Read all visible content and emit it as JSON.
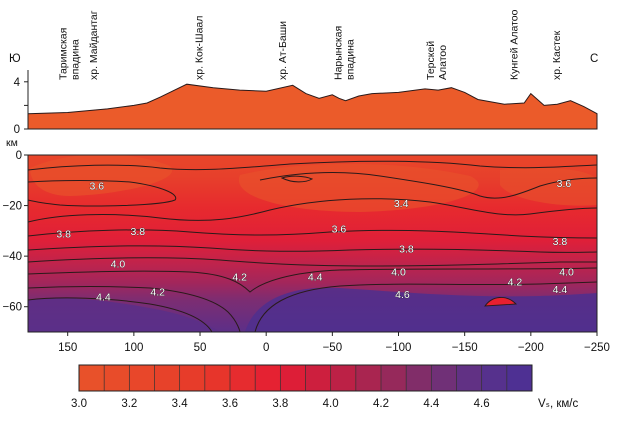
{
  "chart_data": {
    "type": "heatmap",
    "x_axis": {
      "reversed": true,
      "range": [
        180,
        -250
      ],
      "ticks": [
        150,
        100,
        50,
        0,
        -50,
        -100,
        -150,
        -200,
        -250
      ]
    },
    "topography": {
      "direction_labels": {
        "left": "Ю",
        "right": "С"
      },
      "y_ticks": [
        0,
        2,
        4
      ],
      "y_tick_labels": [
        "0",
        "",
        "4"
      ],
      "y_range": [
        0,
        5
      ],
      "unit_label": "км",
      "profile_x": [
        180,
        150,
        120,
        100,
        90,
        80,
        60,
        40,
        20,
        0,
        -20,
        -30,
        -40,
        -50,
        -55,
        -60,
        -70,
        -80,
        -100,
        -120,
        -130,
        -140,
        -150,
        -160,
        -180,
        -195,
        -200,
        -210,
        -220,
        -230,
        -240,
        -250
      ],
      "profile_height": [
        1.3,
        1.4,
        1.7,
        2.0,
        2.2,
        2.7,
        3.8,
        3.5,
        3.3,
        3.2,
        3.7,
        3.0,
        2.6,
        2.9,
        2.6,
        2.4,
        2.8,
        3.0,
        3.1,
        3.4,
        3.3,
        3.5,
        3.1,
        2.5,
        2.1,
        2.2,
        3.0,
        2.0,
        2.1,
        2.4,
        1.9,
        1.3
      ],
      "sites": [
        {
          "x": 148,
          "name": "Таримская впадина"
        },
        {
          "x": 125,
          "name": "хр. Майдантаг"
        },
        {
          "x": 45,
          "name": "хр. Кок-Шаал"
        },
        {
          "x": -18,
          "name": "хр. Ат-Баши"
        },
        {
          "x": -60,
          "name": "Нарынская впадина"
        },
        {
          "x": -130,
          "name": "Терскей Алатоо"
        },
        {
          "x": -193,
          "name": "Кунгей Алатоо"
        },
        {
          "x": -225,
          "name": "хр. Кастек"
        }
      ]
    },
    "section": {
      "y_ticks": [
        0,
        -20,
        -40,
        -60
      ],
      "y_range": [
        -70,
        0
      ],
      "contour_labels": [
        {
          "x": 128,
          "y": -12,
          "value": "3.6"
        },
        {
          "x": 153,
          "y": -31,
          "value": "3.8"
        },
        {
          "x": 97,
          "y": -30,
          "value": "3.8"
        },
        {
          "x": 112,
          "y": -43,
          "value": "4.0"
        },
        {
          "x": 123,
          "y": -56,
          "value": "4.4"
        },
        {
          "x": 82,
          "y": -54,
          "value": "4.2"
        },
        {
          "x": 20,
          "y": -48,
          "value": "4.2"
        },
        {
          "x": -37,
          "y": -48,
          "value": "4.4"
        },
        {
          "x": -55,
          "y": -29,
          "value": "3.6"
        },
        {
          "x": -100,
          "y": -46,
          "value": "4.0"
        },
        {
          "x": -102,
          "y": -19,
          "value": "3.4"
        },
        {
          "x": -106,
          "y": -37,
          "value": "3.8"
        },
        {
          "x": -103,
          "y": -55,
          "value": "4.6"
        },
        {
          "x": -188,
          "y": -50,
          "value": "4.2"
        },
        {
          "x": -225,
          "y": -11,
          "value": "3.6"
        },
        {
          "x": -222,
          "y": -34,
          "value": "3.8"
        },
        {
          "x": -227,
          "y": -46,
          "value": "4.0"
        },
        {
          "x": -222,
          "y": -53,
          "value": "4.4"
        }
      ]
    },
    "colorbar": {
      "ticks": [
        "3.0",
        "3.2",
        "3.4",
        "3.6",
        "3.8",
        "4.0",
        "4.2",
        "4.4",
        "4.6"
      ],
      "range": [
        3.0,
        4.8
      ],
      "step": 0.1,
      "unit_label": "Vₛ, км/с",
      "color_stops": [
        {
          "v": 3.0,
          "c": "#e8532a"
        },
        {
          "v": 3.5,
          "c": "#e73a2a"
        },
        {
          "v": 3.8,
          "c": "#e51d33"
        },
        {
          "v": 4.0,
          "c": "#c51f42"
        },
        {
          "v": 4.2,
          "c": "#a02754"
        },
        {
          "v": 4.4,
          "c": "#772f70"
        },
        {
          "v": 4.6,
          "c": "#5a318a"
        },
        {
          "v": 4.8,
          "c": "#4a3096"
        }
      ]
    },
    "colors": {
      "topography_fill": "#eb5b2a",
      "contour_line": "#2a1a1a",
      "high_velocity_body": "#5b2f88"
    }
  }
}
